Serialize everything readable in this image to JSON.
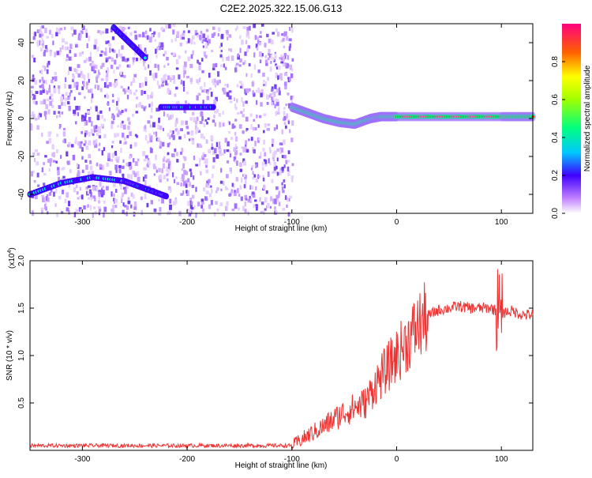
{
  "title": "C2E2.2025.322.15.06.G13",
  "chart_data": [
    {
      "type": "heatmap",
      "name": "spectrogram",
      "xlabel": "Height of straight line (km)",
      "ylabel": "Frequency (Hz)",
      "xlim": [
        -350,
        130
      ],
      "ylim": [
        -50,
        50
      ],
      "x_ticks": [
        -300,
        -200,
        -100,
        0,
        100
      ],
      "y_ticks": [
        -40,
        -20,
        0,
        20,
        40
      ],
      "colorbar": {
        "label": "Normalized spectral amplitude",
        "range": [
          0,
          1
        ],
        "ticks": [
          0.0,
          0.2,
          0.4,
          0.6,
          0.8
        ]
      },
      "features": [
        {
          "name": "noise-region",
          "x_range": [
            -350,
            -100
          ]
        },
        {
          "name": "lower-arc",
          "points": [
            [
              -350,
              -40
            ],
            [
              -320,
              -34
            ],
            [
              -290,
              -31
            ],
            [
              -260,
              -33
            ],
            [
              -240,
              -37
            ],
            [
              -220,
              -41
            ]
          ]
        },
        {
          "name": "upper-arc",
          "points": [
            [
              -270,
              48
            ],
            [
              -255,
              40
            ],
            [
              -240,
              32
            ]
          ]
        },
        {
          "name": "mid-band",
          "points": [
            [
              -225,
              6
            ],
            [
              -200,
              6
            ],
            [
              -175,
              6
            ]
          ]
        },
        {
          "name": "signal-band",
          "points": [
            [
              -100,
              6
            ],
            [
              -85,
              3
            ],
            [
              -70,
              0
            ],
            [
              -55,
              -2
            ],
            [
              -40,
              -3
            ],
            [
              -25,
              0
            ],
            [
              -15,
              1
            ],
            [
              0,
              1
            ],
            [
              50,
              1
            ],
            [
              100,
              1
            ],
            [
              130,
              1
            ]
          ]
        }
      ]
    },
    {
      "type": "line",
      "name": "snr",
      "xlabel": "Height of straight line (km)",
      "ylabel": "SNR (10 * v/v)",
      "exponent_label": "(x10",
      "exponent_power": "4",
      "exponent_close": ")",
      "xlim": [
        -350,
        130
      ],
      "ylim": [
        0,
        2.0
      ],
      "x_ticks": [
        -300,
        -200,
        -100,
        0,
        100
      ],
      "y_ticks": [
        0.5,
        1.0,
        1.5,
        2.0
      ],
      "y_tick_labels": [
        "0.5",
        "1.0",
        "1.5",
        "2.0"
      ],
      "color": "#ee3333",
      "series": [
        {
          "name": "snr",
          "x": [
            -350,
            -300,
            -200,
            -100,
            -90,
            -70,
            -50,
            -40,
            -30,
            -20,
            -10,
            0,
            10,
            20,
            30,
            40,
            50,
            60,
            70,
            80,
            90,
            100,
            110,
            120,
            130
          ],
          "y": [
            0.05,
            0.05,
            0.05,
            0.05,
            0.12,
            0.25,
            0.4,
            0.45,
            0.5,
            0.7,
            0.85,
            1.0,
            1.15,
            1.3,
            1.42,
            1.48,
            1.5,
            1.52,
            1.5,
            1.5,
            1.5,
            1.45,
            1.47,
            1.43,
            1.43
          ]
        }
      ]
    }
  ]
}
